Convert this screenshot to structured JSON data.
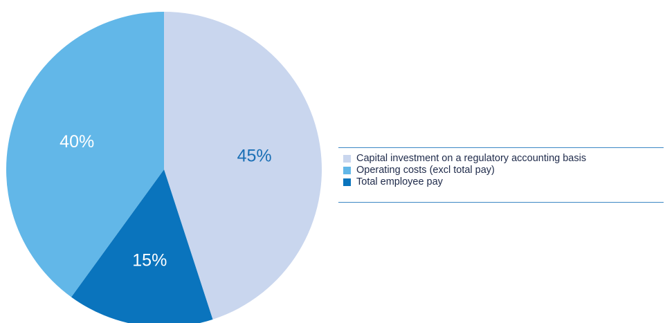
{
  "chart_data": {
    "type": "pie",
    "slices": [
      {
        "label": "Capital investment on a regulatory accounting basis",
        "value": 45,
        "value_label": "45%",
        "color": "#c9d6ee",
        "label_color": "#1a6fb5"
      },
      {
        "label": "Total employee pay",
        "value": 15,
        "value_label": "15%",
        "color": "#0a74bd",
        "label_color": "#ffffff"
      },
      {
        "label": "Operating costs (excl total pay)",
        "value": 40,
        "value_label": "40%",
        "color": "#62b7e8",
        "label_color": "#ffffff"
      }
    ],
    "start_angle_deg": 0,
    "direction": "clockwise",
    "legend_placement": "right",
    "legend": [
      {
        "label": "Capital investment on a regulatory accounting basis",
        "color": "#c9d6ee"
      },
      {
        "label": "Operating costs (excl total pay)",
        "color": "#62b7e8"
      },
      {
        "label": "Total employee pay",
        "color": "#0a74bd"
      }
    ]
  }
}
